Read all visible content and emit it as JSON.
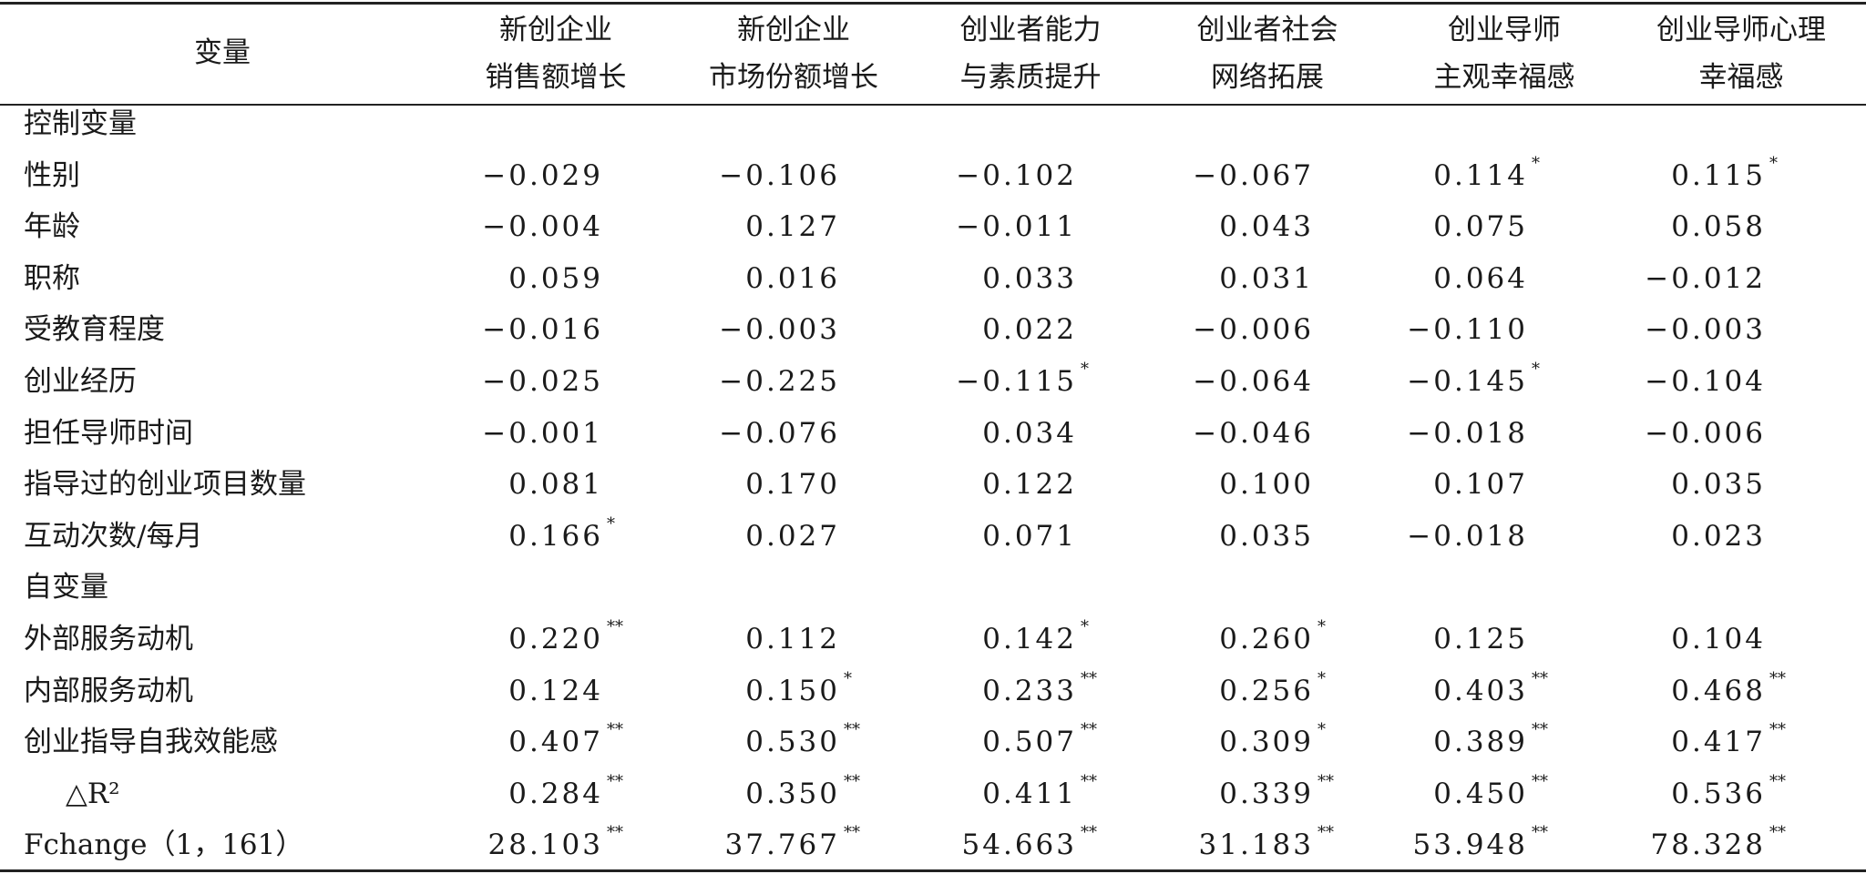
{
  "table": {
    "corner": "变量",
    "columns": [
      [
        "新创企业",
        "销售额增长"
      ],
      [
        "新创企业",
        "市场份额增长"
      ],
      [
        "创业者能力",
        "与素质提升"
      ],
      [
        "创业者社会",
        "网络拓展"
      ],
      [
        "创业导师",
        "主观幸福感"
      ],
      [
        "创业导师心理",
        "幸福感"
      ]
    ],
    "rows": [
      {
        "label": "控制变量"
      },
      {
        "label": "性别",
        "cells": [
          {
            "value": "−0.029"
          },
          {
            "value": "−0.106"
          },
          {
            "value": "−0.102"
          },
          {
            "value": "−0.067"
          },
          {
            "value": "0.114",
            "sig": "*"
          },
          {
            "value": "0.115",
            "sig": "*"
          }
        ]
      },
      {
        "label": "年龄",
        "cells": [
          {
            "value": "−0.004"
          },
          {
            "value": "0.127"
          },
          {
            "value": "−0.011"
          },
          {
            "value": "0.043"
          },
          {
            "value": "0.075"
          },
          {
            "value": "0.058"
          }
        ]
      },
      {
        "label": "职称",
        "cells": [
          {
            "value": "0.059"
          },
          {
            "value": "0.016"
          },
          {
            "value": "0.033"
          },
          {
            "value": "0.031"
          },
          {
            "value": "0.064"
          },
          {
            "value": "−0.012"
          }
        ]
      },
      {
        "label": "受教育程度",
        "cells": [
          {
            "value": "−0.016"
          },
          {
            "value": "−0.003"
          },
          {
            "value": "0.022"
          },
          {
            "value": "−0.006"
          },
          {
            "value": "−0.110"
          },
          {
            "value": "−0.003"
          }
        ]
      },
      {
        "label": "创业经历",
        "cells": [
          {
            "value": "−0.025"
          },
          {
            "value": "−0.225"
          },
          {
            "value": "−0.115",
            "sig": "*"
          },
          {
            "value": "−0.064"
          },
          {
            "value": "−0.145",
            "sig": "*"
          },
          {
            "value": "−0.104"
          }
        ]
      },
      {
        "label": "担任导师时间",
        "cells": [
          {
            "value": "−0.001"
          },
          {
            "value": "−0.076"
          },
          {
            "value": "0.034"
          },
          {
            "value": "−0.046"
          },
          {
            "value": "−0.018"
          },
          {
            "value": "−0.006"
          }
        ]
      },
      {
        "label": "指导过的创业项目数量",
        "cells": [
          {
            "value": "0.081"
          },
          {
            "value": "0.170"
          },
          {
            "value": "0.122"
          },
          {
            "value": "0.100"
          },
          {
            "value": "0.107"
          },
          {
            "value": "0.035"
          }
        ]
      },
      {
        "label": "互动次数/每月",
        "cells": [
          {
            "value": "0.166",
            "sig": "*"
          },
          {
            "value": "0.027"
          },
          {
            "value": "0.071"
          },
          {
            "value": "0.035"
          },
          {
            "value": "−0.018"
          },
          {
            "value": "0.023"
          }
        ]
      },
      {
        "label": "自变量"
      },
      {
        "label": "外部服务动机",
        "cells": [
          {
            "value": "0.220",
            "sig": "**"
          },
          {
            "value": "0.112"
          },
          {
            "value": "0.142",
            "sig": "*"
          },
          {
            "value": "0.260",
            "sig": "*"
          },
          {
            "value": "0.125"
          },
          {
            "value": "0.104"
          }
        ]
      },
      {
        "label": "内部服务动机",
        "cells": [
          {
            "value": "0.124"
          },
          {
            "value": "0.150",
            "sig": "*"
          },
          {
            "value": "0.233",
            "sig": "**"
          },
          {
            "value": "0.256",
            "sig": "*"
          },
          {
            "value": "0.403",
            "sig": "**"
          },
          {
            "value": "0.468",
            "sig": "**"
          }
        ]
      },
      {
        "label": "创业指导自我效能感",
        "cells": [
          {
            "value": "0.407",
            "sig": "**"
          },
          {
            "value": "0.530",
            "sig": "**"
          },
          {
            "value": "0.507",
            "sig": "**"
          },
          {
            "value": "0.309",
            "sig": "*"
          },
          {
            "value": "0.389",
            "sig": "**"
          },
          {
            "value": "0.417",
            "sig": "**"
          }
        ]
      },
      {
        "label": "△R²",
        "cells": [
          {
            "value": "0.284",
            "sig": "**"
          },
          {
            "value": "0.350",
            "sig": "**"
          },
          {
            "value": "0.411",
            "sig": "**"
          },
          {
            "value": "0.339",
            "sig": "**"
          },
          {
            "value": "0.450",
            "sig": "**"
          },
          {
            "value": "0.536",
            "sig": "**"
          }
        ]
      },
      {
        "label": "Fchange（1，161）",
        "cells": [
          {
            "value": "28.103",
            "sig": "**"
          },
          {
            "value": "37.767",
            "sig": "**"
          },
          {
            "value": "54.663",
            "sig": "**"
          },
          {
            "value": "31.183",
            "sig": "**"
          },
          {
            "value": "53.948",
            "sig": "**"
          },
          {
            "value": "78.328",
            "sig": "**"
          }
        ]
      }
    ]
  }
}
